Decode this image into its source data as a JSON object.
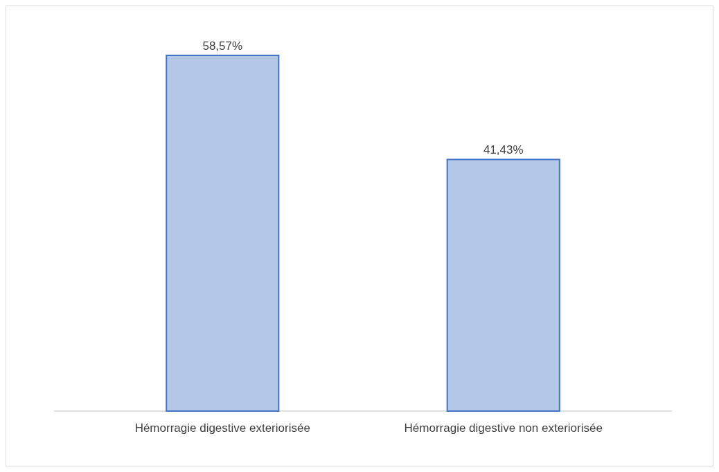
{
  "chart_data": {
    "type": "bar",
    "categories": [
      "Hémorragie digestive exteriorisée",
      "Hémorragie digestive non exteriorisée"
    ],
    "values": [
      58.57,
      41.43
    ],
    "value_labels": [
      "58,57%",
      "41,43%"
    ],
    "color": "#b4c7e7"
  }
}
